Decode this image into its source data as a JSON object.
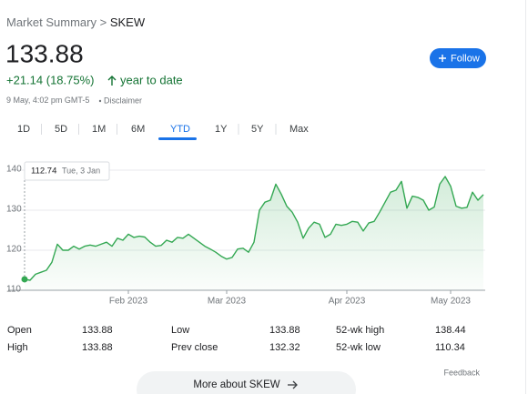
{
  "header": {
    "breadcrumb": [
      "Market Summary",
      "SKEW"
    ],
    "separator": ">",
    "price": "133.88",
    "change": "+21.14 (18.75%)",
    "period": "year to date",
    "timestamp": "9 May, 4:02 pm GMT-5",
    "disclaimer": "Disclaimer",
    "follow": "Follow"
  },
  "tabs": [
    "1D",
    "5D",
    "1M",
    "6M",
    "YTD",
    "1Y",
    "5Y",
    "Max"
  ],
  "active_tab": 4,
  "chart_data": {
    "type": "line",
    "categories": [
      "Tue, 3 Jan",
      null,
      null,
      null,
      null,
      null,
      null,
      null,
      null,
      null,
      null,
      null,
      null,
      null,
      null,
      null,
      null,
      null,
      null,
      null,
      null,
      null,
      null,
      null,
      null,
      null,
      null,
      null,
      null,
      null,
      null,
      null,
      null,
      null,
      null,
      null,
      null,
      null,
      null,
      null,
      null,
      null,
      null,
      null,
      null,
      null,
      null,
      null,
      null,
      null,
      null,
      null,
      null,
      null,
      null,
      null,
      null,
      null,
      null,
      null,
      null,
      null,
      null,
      null,
      null,
      null,
      null,
      null,
      null,
      null,
      null,
      null,
      null,
      null,
      null,
      null,
      null,
      null,
      null,
      null,
      null,
      null,
      null,
      null,
      null
    ],
    "values": [
      112.74,
      112.5,
      114,
      114.5,
      115,
      117,
      121.5,
      120,
      120,
      121,
      120.3,
      121,
      121.3,
      121,
      121.5,
      122,
      121,
      123,
      122.5,
      124,
      123.2,
      123.5,
      123.3,
      122,
      121,
      121.2,
      122.5,
      122,
      123.2,
      123,
      124,
      123,
      122,
      121,
      120.3,
      119.5,
      118.5,
      117.8,
      118.2,
      120.3,
      120.5,
      119.5,
      122,
      130,
      132,
      132.5,
      136.5,
      134,
      131,
      129.5,
      127,
      123,
      125.5,
      127,
      126.5,
      123.2,
      124,
      126.5,
      126.2,
      126.5,
      127.2,
      127,
      124.8,
      126.8,
      127.2,
      129.5,
      132,
      134.5,
      135,
      137.2,
      130.5,
      133.5,
      133.2,
      132.5,
      130,
      130.8,
      136.5,
      138.4,
      136,
      131,
      130.5,
      130.7,
      134.5,
      132.5,
      133.88
    ],
    "color": "#34a853",
    "xlim": [
      0,
      84
    ],
    "xticks": [
      {
        "value": 19,
        "label": "Feb 2023"
      },
      {
        "value": 37,
        "label": "Mar 2023"
      },
      {
        "value": 59,
        "label": "Apr 2023"
      },
      {
        "value": 78,
        "label": "May 2023"
      }
    ],
    "ylim": [
      110,
      141.5
    ],
    "yticks": [
      110,
      120,
      130,
      140
    ],
    "grid": true
  },
  "stats": [
    [
      [
        "Open",
        "133.88"
      ],
      [
        "Low",
        "133.88"
      ],
      [
        "52-wk high",
        "138.44"
      ]
    ],
    [
      [
        "High",
        "133.88"
      ],
      [
        "Prev close",
        "132.32"
      ],
      [
        "52-wk low",
        "110.34"
      ]
    ]
  ],
  "feedback": "Feedback",
  "more_button": "More about SKEW"
}
